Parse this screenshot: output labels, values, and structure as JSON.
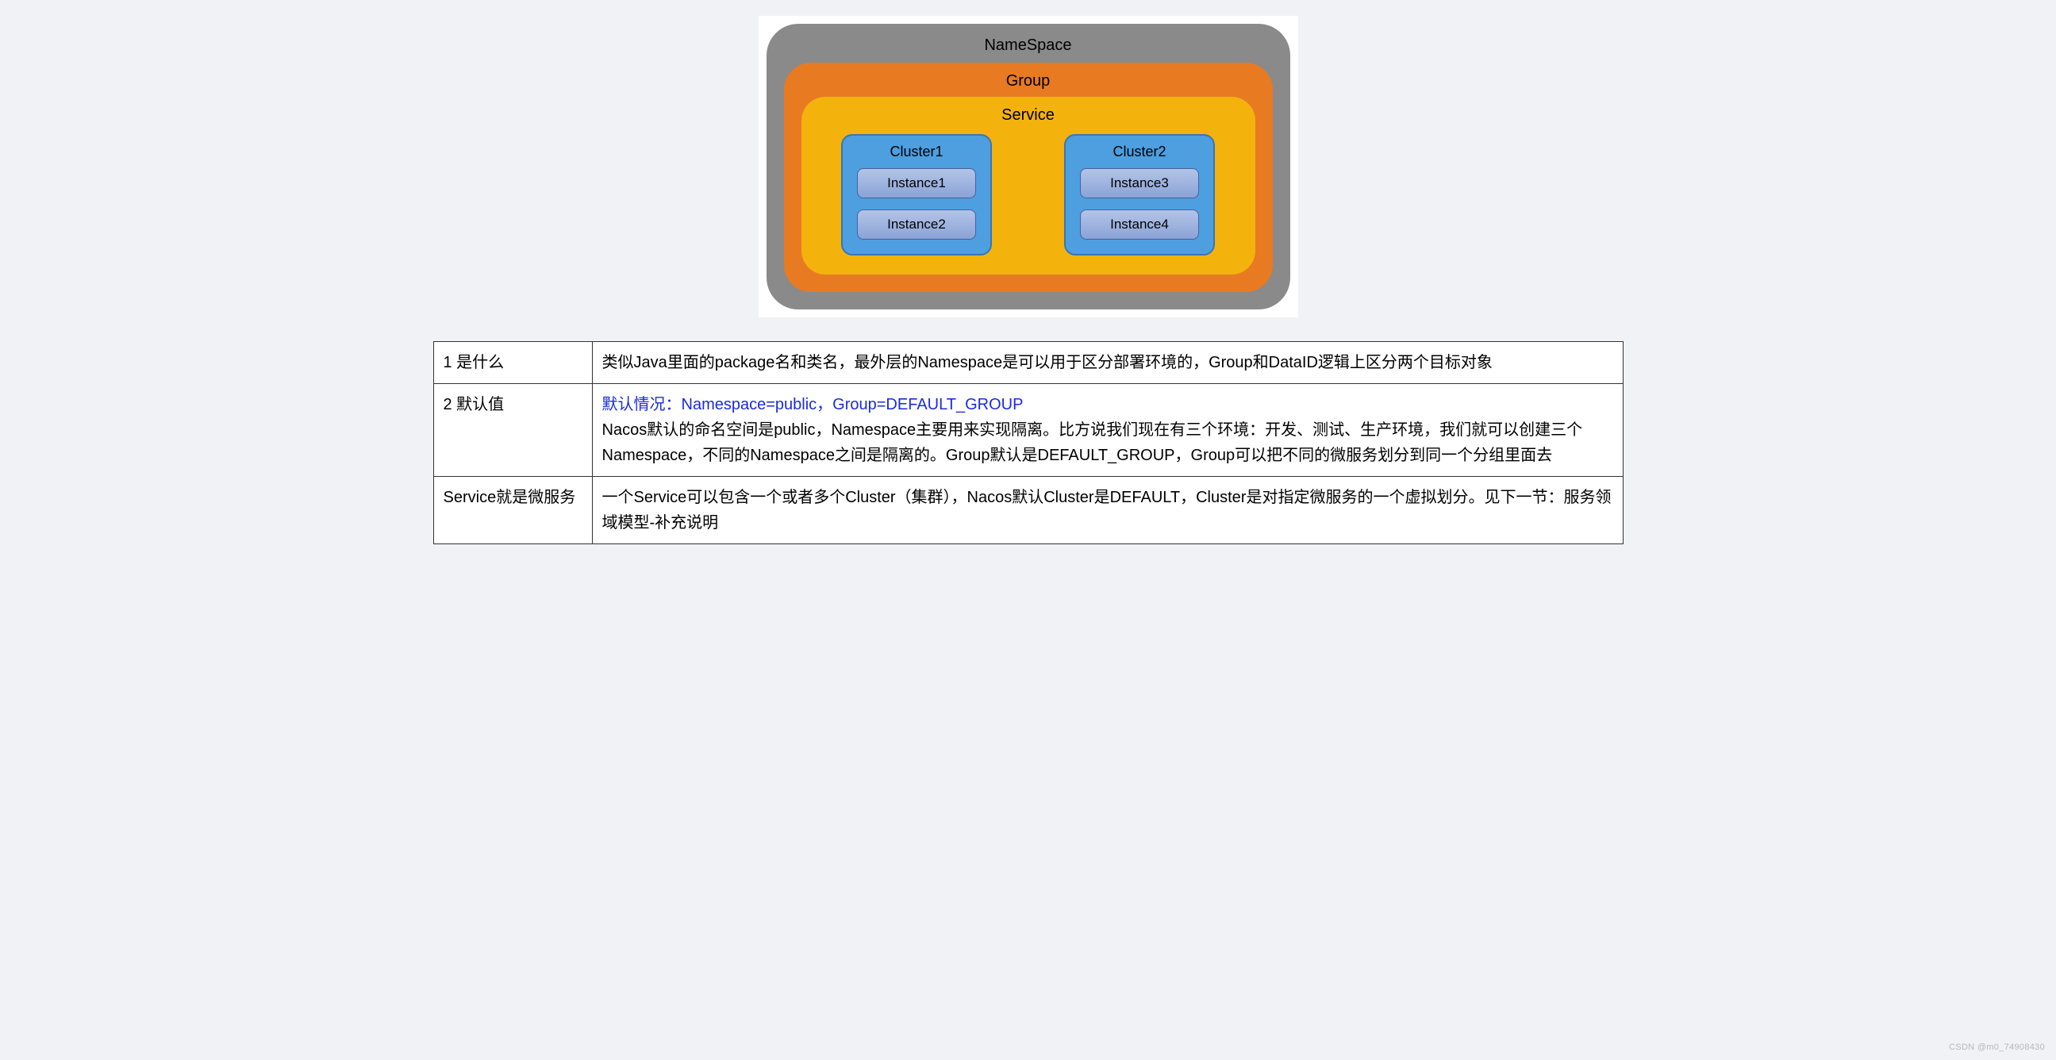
{
  "diagram": {
    "namespace": {
      "label": "NameSpace",
      "bg": "#8a8a8a",
      "radius": 40
    },
    "group": {
      "label": "Group",
      "bg": "#e87a22",
      "radius": 34
    },
    "service": {
      "label": "Service",
      "bg": "#f4b20d",
      "radius": 30
    },
    "cluster_bg": "#4d9fe0",
    "cluster_border": "#3876b5",
    "instance_bg_top": "#b3c4e8",
    "instance_bg_bottom": "#8aa3d6",
    "instance_border": "#4a5fa0",
    "clusters": [
      {
        "label": "Cluster1",
        "instances": [
          "Instance1",
          "Instance2"
        ]
      },
      {
        "label": "Cluster2",
        "instances": [
          "Instance3",
          "Instance4"
        ]
      }
    ],
    "label_fontsize": 20,
    "instance_fontsize": 17,
    "background": "#ffffff"
  },
  "table": {
    "border_color": "#333333",
    "cell_fontsize": 20,
    "highlight_color": "#1a2be0",
    "rows": [
      {
        "key": "1 是什么",
        "value": "类似Java里面的package名和类名，最外层的Namespace是可以用于区分部署环境的，Group和DataID逻辑上区分两个目标对象"
      },
      {
        "key": "2 默认值",
        "highlight": "默认情况：Namespace=public，Group=DEFAULT_GROUP",
        "value": "Nacos默认的命名空间是public，Namespace主要用来实现隔离。比方说我们现在有三个环境：开发、测试、生产环境，我们就可以创建三个Namespace，不同的Namespace之间是隔离的。Group默认是DEFAULT_GROUP，Group可以把不同的微服务划分到同一个分组里面去"
      },
      {
        "key": "Service就是微服务",
        "value": "一个Service可以包含一个或者多个Cluster（集群），Nacos默认Cluster是DEFAULT，Cluster是对指定微服务的一个虚拟划分。见下一节：服务领域模型-补充说明"
      }
    ]
  },
  "watermark": "CSDN @m0_74908430",
  "page_bg": "#f0f2f5"
}
